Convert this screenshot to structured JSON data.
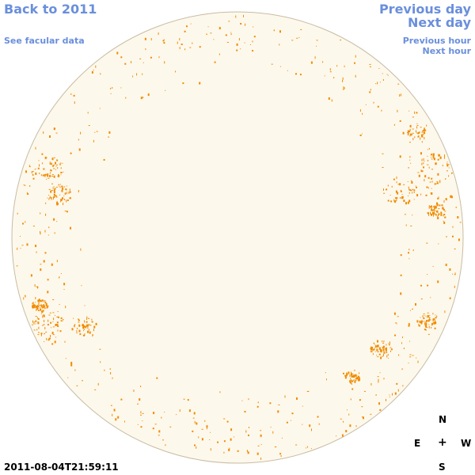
{
  "nav": {
    "back_label": "Back to 2011",
    "facular_label": "See facular data",
    "prev_day_label": "Previous day",
    "next_day_label": "Next day",
    "prev_hour_label": "Previous hour",
    "next_hour_label": "Next hour"
  },
  "compass": {
    "north": "N",
    "south": "S",
    "east": "E",
    "west": "W",
    "center": "+"
  },
  "timestamp": "2011-08-04T21:59:11",
  "colors": {
    "link": "#6a8fdc",
    "disk_fill": "#fdf8ec",
    "disk_edge": "#c8bca4",
    "facula": "#f08c00"
  }
}
